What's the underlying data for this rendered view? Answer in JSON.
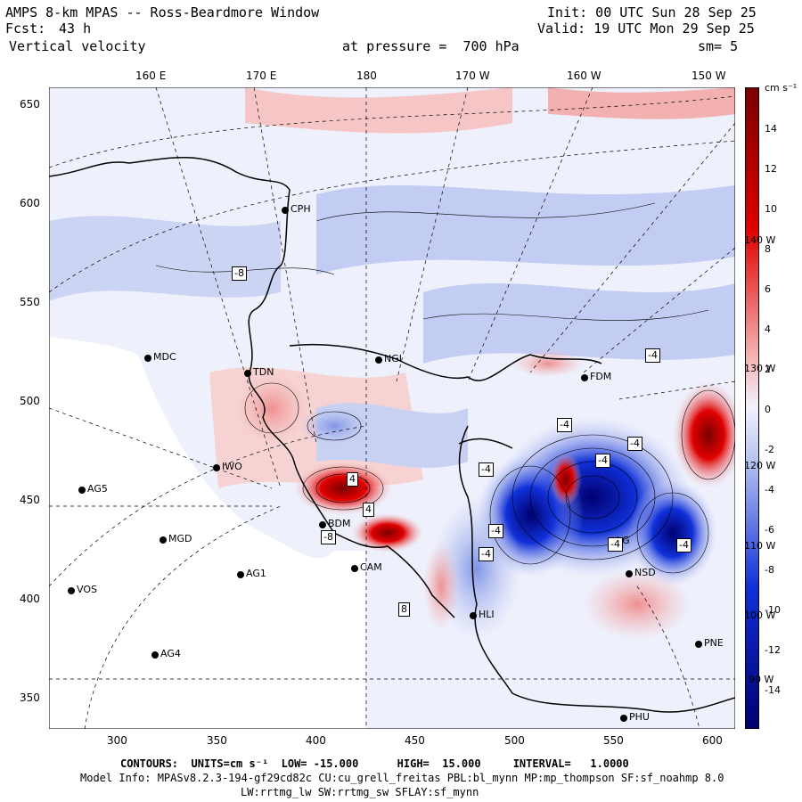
{
  "header": {
    "title": "AMPS 8-km MPAS -- Ross-Beardmore Window",
    "forecast_label": "Fcst:",
    "forecast_hours": "43 h",
    "variable": "Vertical velocity",
    "init": "Init: 00 UTC Sun 28 Sep 25",
    "valid": "Valid: 19 UTC Mon 29 Sep 25",
    "pressure": "at pressure =  700 hPa",
    "smoothing": "sm= 5"
  },
  "axes": {
    "top_longitudes": [
      "160 E",
      "170 E",
      "180",
      "170 W",
      "160 W",
      "150 W"
    ],
    "left_y": [
      "650",
      "600",
      "550",
      "500",
      "450",
      "400",
      "350"
    ],
    "bottom_x": [
      "300",
      "350",
      "400",
      "450",
      "500",
      "550",
      "600"
    ],
    "right_longitudes": [
      "140 W",
      "130 W",
      "120 W",
      "110 W",
      "100 W",
      "90 W"
    ]
  },
  "colorbar": {
    "units": "cm s⁻¹",
    "ticks": [
      "14",
      "12",
      "10",
      "8",
      "6",
      "4",
      "2",
      "0",
      "-2",
      "-4",
      "-6",
      "-8",
      "-10",
      "-12",
      "-14"
    ],
    "colors": {
      "strong_pos": "#7a0000",
      "mid_pos": "#e00000",
      "weak_pos": "#f4b4b4",
      "neutral": "#f2f2ff",
      "weak_neg": "#b8c4f0",
      "mid_neg": "#1030d8",
      "strong_neg": "#000070"
    }
  },
  "stations": [
    {
      "name": "CPH"
    },
    {
      "name": "MDC"
    },
    {
      "name": "NGI"
    },
    {
      "name": "TDN"
    },
    {
      "name": "IWO"
    },
    {
      "name": "AG5"
    },
    {
      "name": "MGD"
    },
    {
      "name": "AG1"
    },
    {
      "name": "VOS"
    },
    {
      "name": "AG4"
    },
    {
      "name": "BDM"
    },
    {
      "name": "CAM"
    },
    {
      "name": "HLI"
    },
    {
      "name": "NSD"
    },
    {
      "name": "PNE"
    },
    {
      "name": "PHU"
    },
    {
      "name": "FDM"
    },
    {
      "name": "LG"
    }
  ],
  "contour_labels": [
    "-4",
    "-4",
    "-4",
    "-4",
    "-4",
    "-4",
    "-4",
    "-4",
    "-4",
    "4",
    "4",
    "-8",
    "-8",
    "8"
  ],
  "footer": {
    "contours": "CONTOURS:  UNITS=cm s⁻¹  LOW= -15.000      HIGH=  15.000     INTERVAL=   1.0000",
    "model_info": "Model Info: MPASv8.2.3-194-gf29cd82c CU:cu_grell_freitas PBL:bl_mynn MP:mp_thompson SF:sf_noahmp 8.0",
    "schemes": "LW:rrtmg_lw SW:rrtmg_sw SFLAY:sf_mynn"
  }
}
